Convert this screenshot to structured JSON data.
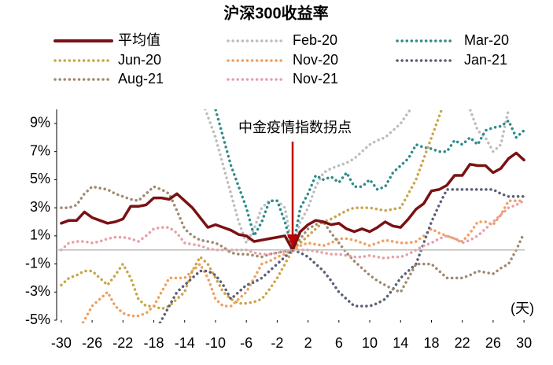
{
  "chart_data": {
    "type": "line",
    "title": "沪深300收益率",
    "annotation": "中金疫情指数拐点",
    "x_unit_label": "(天)",
    "x": [
      -30,
      -29,
      -28,
      -27,
      -26,
      -25,
      -24,
      -23,
      -22,
      -21,
      -20,
      -19,
      -18,
      -17,
      -16,
      -15,
      -14,
      -13,
      -12,
      -11,
      -10,
      -9,
      -8,
      -7,
      -6,
      -5,
      -4,
      -3,
      -2,
      -1,
      0,
      1,
      2,
      3,
      4,
      5,
      6,
      7,
      8,
      9,
      10,
      11,
      12,
      13,
      14,
      15,
      16,
      17,
      18,
      19,
      20,
      21,
      22,
      23,
      24,
      25,
      26,
      27,
      28,
      29,
      30
    ],
    "xlim": [
      -30.6,
      30.6
    ],
    "xticks": [
      -30,
      -26,
      -22,
      -18,
      -14,
      -10,
      -6,
      -2,
      2,
      6,
      10,
      14,
      18,
      22,
      26,
      30
    ],
    "ylim": [
      -5,
      10
    ],
    "yticks": [
      {
        "value": 9,
        "label": "9%"
      },
      {
        "value": 7,
        "label": "7%"
      },
      {
        "value": 5,
        "label": "5%"
      },
      {
        "value": 3,
        "label": "3%"
      },
      {
        "value": 1,
        "label": "1%"
      },
      {
        "value": -1,
        "label": "-1%"
      },
      {
        "value": -3,
        "label": "-3%"
      },
      {
        "value": -5,
        "label": "-5%"
      }
    ],
    "grid": false,
    "series": [
      {
        "name": "平均值",
        "color": "#7b1113",
        "style": "solid",
        "values": [
          1.9,
          2.1,
          2.1,
          2.7,
          2.3,
          2.1,
          1.9,
          2.0,
          2.2,
          3.1,
          3.1,
          3.2,
          3.7,
          3.7,
          3.6,
          4.0,
          3.5,
          3.0,
          2.3,
          1.6,
          1.8,
          1.6,
          1.4,
          1.1,
          1.0,
          0.6,
          0.7,
          0.8,
          0.9,
          1.0,
          0,
          1.3,
          1.8,
          2.1,
          2.0,
          1.8,
          1.9,
          1.5,
          1.3,
          1.5,
          1.3,
          1.6,
          2.0,
          1.7,
          1.6,
          2.2,
          2.9,
          3.3,
          4.2,
          4.3,
          4.6,
          5.3,
          5.3,
          6.1,
          6.0,
          6.0,
          5.5,
          5.8,
          6.5,
          6.9,
          6.4
        ]
      },
      {
        "name": "Feb-20",
        "color": "#bdbdbd",
        "style": "dotted",
        "values": [
          11,
          11,
          11,
          11,
          11,
          11,
          11,
          11,
          11,
          11,
          11,
          11,
          11,
          11,
          11,
          11,
          11,
          11,
          11,
          9.5,
          8,
          6,
          4,
          2,
          0.5,
          1.5,
          3,
          3.5,
          3.5,
          3,
          0,
          2,
          3,
          4.5,
          5.5,
          5.8,
          6,
          6.2,
          6.5,
          7,
          7.5,
          7.8,
          8,
          8.5,
          9,
          9.8,
          10.5,
          11,
          11,
          11,
          11,
          11,
          11,
          10,
          8.5,
          8,
          7,
          7.5,
          10,
          11,
          11
        ]
      },
      {
        "name": "Mar-20",
        "color": "#2e8b8b",
        "style": "dotted",
        "values": [
          11,
          11,
          11,
          11,
          11,
          11,
          11,
          11,
          11,
          11,
          11,
          11,
          11,
          11,
          11,
          11,
          11,
          11,
          11,
          11,
          10,
          8,
          6,
          4.5,
          3,
          1,
          2,
          3.5,
          3.5,
          2,
          0,
          3,
          4,
          5.3,
          5,
          5.2,
          4.8,
          5.5,
          4.5,
          4.5,
          5,
          4.3,
          4.5,
          5.5,
          6,
          6.5,
          7.5,
          7.3,
          7.2,
          7,
          7,
          7.8,
          7.5,
          8,
          7.5,
          8.5,
          8.7,
          8.8,
          9.2,
          8,
          8.5
        ]
      },
      {
        "name": "Jun-20",
        "color": "#c9a64a",
        "style": "dotted",
        "values": [
          -2.5,
          -2,
          -1.8,
          -1.5,
          -1.5,
          -2,
          -2.5,
          -1.8,
          -1,
          -2,
          -3.5,
          -4,
          -4,
          -4.2,
          -4,
          -3.5,
          -3,
          -1.5,
          -0.5,
          -1,
          -2,
          -3,
          -3.5,
          -3.8,
          -3.8,
          -3.7,
          -3.5,
          -2.8,
          -2,
          -1,
          0,
          0.5,
          1,
          1.5,
          2,
          2.2,
          2.5,
          2.8,
          3,
          3,
          3,
          2.9,
          2.8,
          2.9,
          3,
          4,
          5,
          6.5,
          8,
          9.5,
          11,
          11,
          11,
          11,
          11,
          11,
          11,
          11,
          11,
          11,
          11
        ]
      },
      {
        "name": "Nov-20",
        "color": "#f0a060",
        "style": "dotted",
        "values": [
          -6,
          -6,
          -6,
          -5,
          -4,
          -3.5,
          -3,
          -4,
          -4.5,
          -4.7,
          -4.7,
          -4.5,
          -4,
          -3,
          -2,
          -2,
          -2,
          -1.5,
          -1,
          -2,
          -3.5,
          -4,
          -4,
          -3.5,
          -3,
          -2,
          -1,
          -0.8,
          -0.5,
          -0.3,
          0,
          0.3,
          0.5,
          0.4,
          0.3,
          0.5,
          0.8,
          0.8,
          0.7,
          0.5,
          0.3,
          0.5,
          0.7,
          0.6,
          0.5,
          0.5,
          0.6,
          1,
          1.5,
          1.2,
          1,
          0.8,
          0.6,
          1.2,
          2,
          2,
          1.8,
          2.5,
          3.5,
          3.5,
          3.5
        ]
      },
      {
        "name": "Jan-21",
        "color": "#5b6078",
        "style": "dotted",
        "values": [
          -6,
          -6,
          -6,
          -6,
          -6,
          -6,
          -6,
          -6,
          -6,
          -6,
          -6,
          -6,
          -6,
          -5,
          -4,
          -3,
          -2.5,
          -2,
          -1.5,
          -1.5,
          -1.8,
          -2.5,
          -3.5,
          -3,
          -2.5,
          -2.3,
          -2,
          -1.5,
          -1,
          -0.5,
          0,
          -0.2,
          -0.5,
          -1,
          -1.5,
          -2.2,
          -3,
          -3.5,
          -4,
          -4,
          -4,
          -3.8,
          -3.5,
          -2.8,
          -2,
          -1.5,
          -1,
          0.5,
          2,
          3.2,
          4.3,
          4.3,
          4.3,
          4.3,
          4.3,
          4.3,
          4.3,
          4,
          3.8,
          3.8,
          3.8
        ]
      },
      {
        "name": "Aug-21",
        "color": "#a08a70",
        "style": "dotted",
        "values": [
          3,
          3,
          3.2,
          4,
          4.5,
          4.4,
          4.3,
          4,
          3.8,
          3.6,
          3.5,
          4,
          4.5,
          4.3,
          4,
          2.8,
          1.5,
          1,
          0.7,
          0.6,
          0.5,
          0.2,
          -0.2,
          -0.3,
          -0.3,
          -0.4,
          -0.5,
          -0.3,
          -0.2,
          -0.1,
          0,
          0.8,
          1.5,
          1.8,
          2,
          1.2,
          0.5,
          -0.2,
          -0.8,
          -1.3,
          -1.8,
          -2.2,
          -2.5,
          -2.8,
          -3,
          -2,
          -1,
          -1,
          -1,
          -1.5,
          -2,
          -2,
          -2,
          -1.8,
          -1.5,
          -1.6,
          -1.7,
          -1.3,
          -1,
          0,
          1.2
        ]
      },
      {
        "name": "Nov-21",
        "color": "#e8a0a8",
        "style": "dotted",
        "values": [
          0,
          0.5,
          0.6,
          0.6,
          0.5,
          0.6,
          0.8,
          0.9,
          0.9,
          0.8,
          0.6,
          1,
          1.5,
          1.6,
          1.6,
          1.2,
          0.5,
          0.4,
          0.3,
          0.1,
          0,
          0,
          0,
          0,
          0,
          -0.2,
          -0.3,
          -0.3,
          -0.2,
          -0.1,
          0,
          0,
          0,
          -0.1,
          -0.2,
          -0.3,
          -0.3,
          -0.4,
          -0.5,
          -0.5,
          -0.4,
          -0.5,
          -0.6,
          -0.5,
          -0.5,
          -0.3,
          0,
          0.3,
          0.5,
          0.8,
          1,
          0.8,
          0.5,
          0.7,
          1,
          1.5,
          2,
          2.5,
          3,
          3.2,
          3.5
        ]
      }
    ]
  }
}
